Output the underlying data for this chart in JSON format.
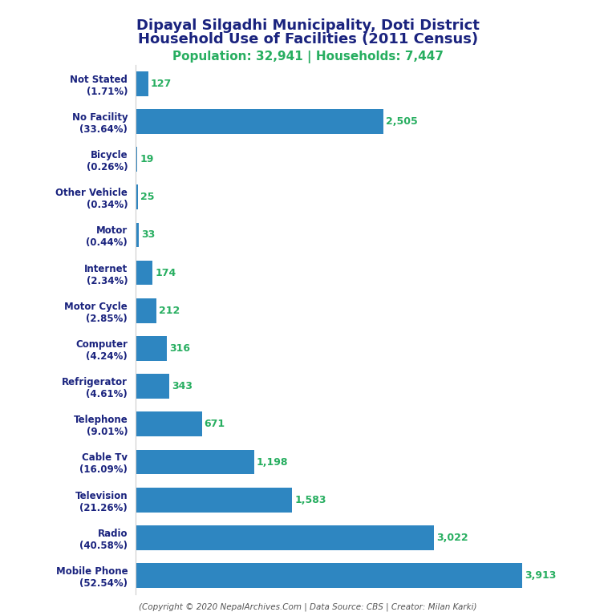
{
  "title_line1": "Dipayal Silgadhi Municipality, Doti District",
  "title_line2": "Household Use of Facilities (2011 Census)",
  "subtitle": "Population: 32,941 | Households: 7,447",
  "copyright": "(Copyright © 2020 NepalArchives.Com | Data Source: CBS | Creator: Milan Karki)",
  "categories": [
    "Not Stated\n(1.71%)",
    "No Facility\n(33.64%)",
    "Bicycle\n(0.26%)",
    "Other Vehicle\n(0.34%)",
    "Motor\n(0.44%)",
    "Internet\n(2.34%)",
    "Motor Cycle\n(2.85%)",
    "Computer\n(4.24%)",
    "Refrigerator\n(4.61%)",
    "Telephone\n(9.01%)",
    "Cable Tv\n(16.09%)",
    "Television\n(21.26%)",
    "Radio\n(40.58%)",
    "Mobile Phone\n(52.54%)"
  ],
  "values": [
    127,
    2505,
    19,
    25,
    33,
    174,
    212,
    316,
    343,
    671,
    1198,
    1583,
    3022,
    3913
  ],
  "bar_color": "#2e86c1",
  "value_color": "#27ae60",
  "title_color": "#1a237e",
  "subtitle_color": "#27ae60",
  "copyright_color": "#555555",
  "background_color": "#ffffff",
  "xlim": [
    0,
    4300
  ]
}
